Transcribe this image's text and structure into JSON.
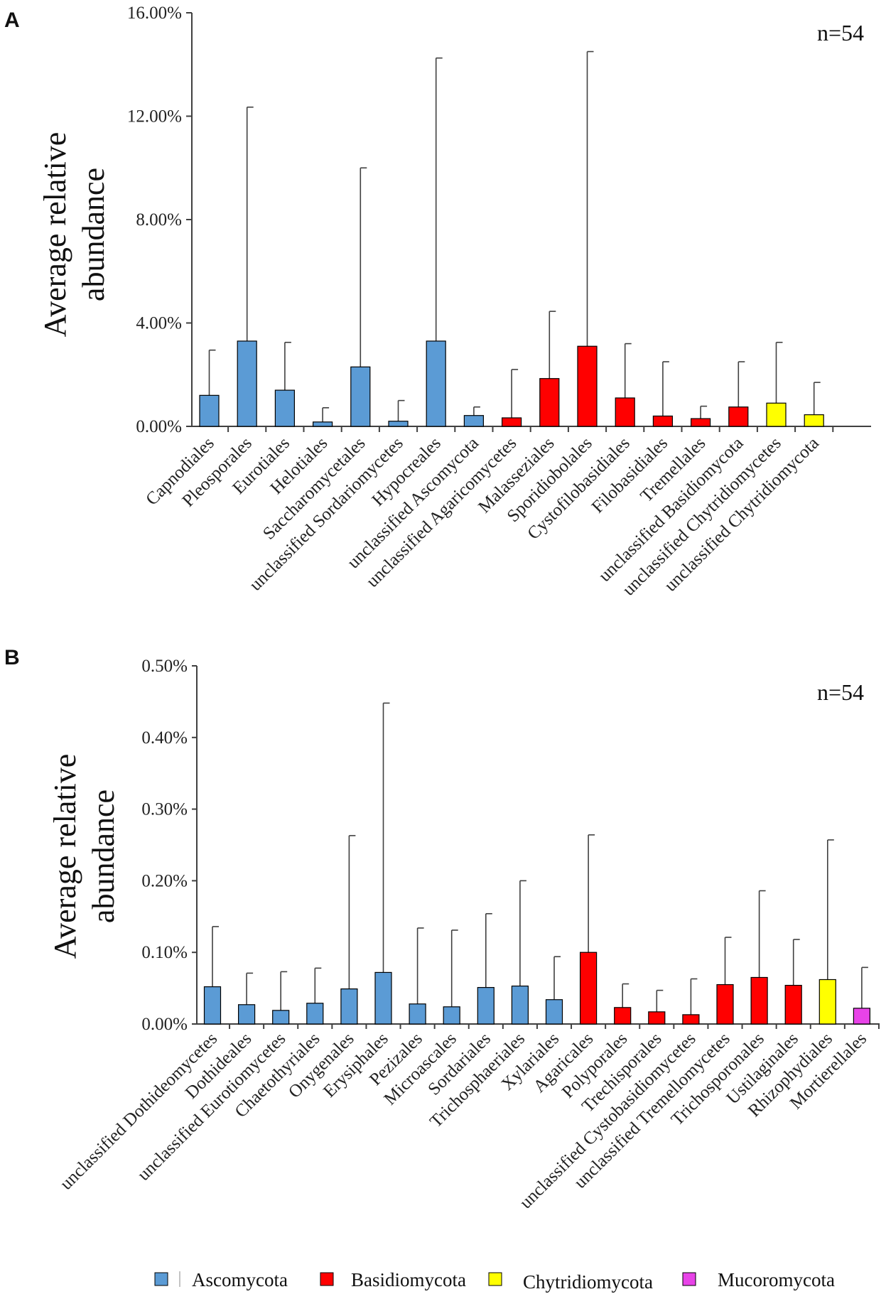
{
  "colors": {
    "Ascomycota": "#5b9bd5",
    "Basidiomycota": "#ff0000",
    "Chytridiomycota": "#ffff00",
    "Mucoromycota": "#e843e8",
    "axis": "#404040",
    "error": "#404040"
  },
  "legend": [
    {
      "name": "Ascomycota"
    },
    {
      "name": "Basidiomycota"
    },
    {
      "name": "Chytridiomycota"
    },
    {
      "name": "Mucoromycota"
    }
  ],
  "chart_data": [
    {
      "panel": "A",
      "type": "bar",
      "title": "",
      "annotation": "n=54",
      "ylabel_lines": [
        "Average relative",
        "abundance"
      ],
      "ylim": [
        0,
        16
      ],
      "yticks": [
        "0.00%",
        "4.00%",
        "8.00%",
        "12.00%",
        "16.00%"
      ],
      "ytick_values": [
        0,
        4,
        8,
        12,
        16
      ],
      "unit": "%",
      "categories": [
        "Capnodiales",
        "Pleosporales",
        "Eurotiales",
        "Helotiales",
        "Saccharomycetales",
        "unclassified Sordariomycetes",
        "Hypocreales",
        "unclassified Ascomycota",
        "unclassified Agaricomycetes",
        "Malasseziales",
        "Sporidiobolales",
        "Cystofilobasidiales",
        "Filobasidiales",
        "Tremellales",
        "unclassified Basidiomycota",
        "unclassified Chytridiomycetes",
        "unclassified Chytridiomycota"
      ],
      "values": [
        1.2,
        3.3,
        1.4,
        0.17,
        2.3,
        0.2,
        3.3,
        0.42,
        0.33,
        1.85,
        3.1,
        1.1,
        0.4,
        0.3,
        0.75,
        0.9,
        0.45
      ],
      "errors_upper": [
        2.95,
        12.35,
        3.25,
        0.72,
        10.0,
        1.0,
        14.25,
        0.75,
        2.2,
        4.45,
        14.5,
        3.2,
        2.5,
        0.78,
        2.5,
        3.25,
        1.7
      ],
      "phyla": [
        "Ascomycota",
        "Ascomycota",
        "Ascomycota",
        "Ascomycota",
        "Ascomycota",
        "Ascomycota",
        "Ascomycota",
        "Ascomycota",
        "Basidiomycota",
        "Basidiomycota",
        "Basidiomycota",
        "Basidiomycota",
        "Basidiomycota",
        "Basidiomycota",
        "Basidiomycota",
        "Chytridiomycota",
        "Chytridiomycota"
      ]
    },
    {
      "panel": "B",
      "type": "bar",
      "title": "",
      "annotation": "n=54",
      "ylabel_lines": [
        "Average relative",
        "abundance"
      ],
      "ylim": [
        0,
        0.5
      ],
      "yticks": [
        "0.00%",
        "0.10%",
        "0.20%",
        "0.30%",
        "0.40%",
        "0.50%"
      ],
      "ytick_values": [
        0,
        0.1,
        0.2,
        0.3,
        0.4,
        0.5
      ],
      "unit": "%",
      "categories": [
        "unclassified Dothideomycetes",
        "Dothideales",
        "unclassified Eurotiomycetes",
        "Chaetothyriales",
        "Onygenales",
        "Erysiphales",
        "Pezizales",
        "Microascales",
        "Sordariales",
        "Trichosphaeriales",
        "Xylariales",
        "Agaricales",
        "Polyporales",
        "Trechisporales",
        "unclassified Cystobasidiomycetes",
        "unclassified Tremellomycetes",
        "Trichosporonales",
        "Ustilaginales",
        "Rhizophydiales",
        "Mortierellales"
      ],
      "values": [
        0.052,
        0.027,
        0.019,
        0.029,
        0.049,
        0.072,
        0.028,
        0.024,
        0.051,
        0.053,
        0.034,
        0.1,
        0.023,
        0.017,
        0.013,
        0.055,
        0.065,
        0.054,
        0.062,
        0.022
      ],
      "errors_upper": [
        0.136,
        0.071,
        0.073,
        0.078,
        0.263,
        0.448,
        0.134,
        0.131,
        0.154,
        0.2,
        0.094,
        0.264,
        0.056,
        0.047,
        0.063,
        0.121,
        0.186,
        0.118,
        0.257,
        0.079
      ],
      "phyla": [
        "Ascomycota",
        "Ascomycota",
        "Ascomycota",
        "Ascomycota",
        "Ascomycota",
        "Ascomycota",
        "Ascomycota",
        "Ascomycota",
        "Ascomycota",
        "Ascomycota",
        "Ascomycota",
        "Basidiomycota",
        "Basidiomycota",
        "Basidiomycota",
        "Basidiomycota",
        "Basidiomycota",
        "Basidiomycota",
        "Basidiomycota",
        "Chytridiomycota",
        "Mucoromycota"
      ]
    }
  ]
}
